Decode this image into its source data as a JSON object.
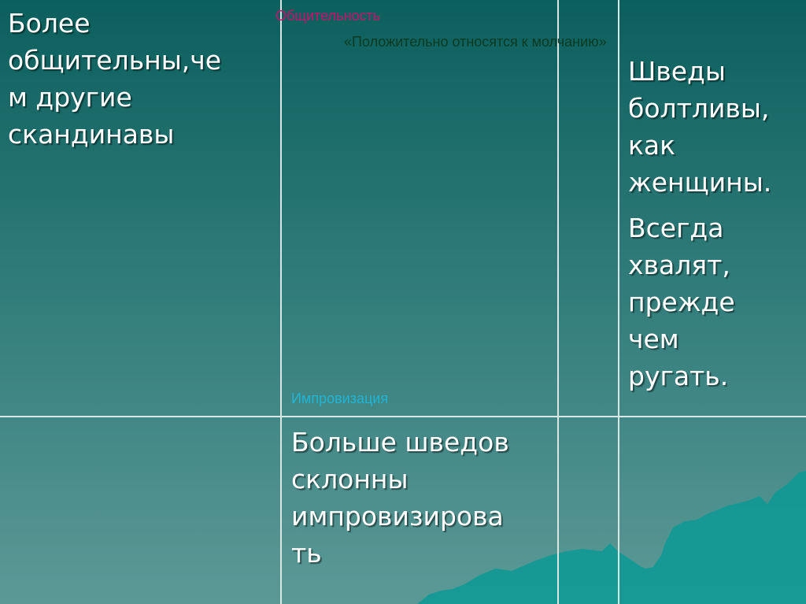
{
  "slide": {
    "cell_r1c1": "Более\nобщительны,че\nм другие\nскандинавы",
    "label_sociability": "Общительность",
    "quote_silence": "«Положительно относятся к молчанию»",
    "label_improvisation": "Импровизация",
    "cell_r1c4_p1": "Шведы\nболтливы,\nкак\nженщины.",
    "cell_r1c4_p2": "Всегда\nхвалят,\nпрежде\nчем\nругать.",
    "cell_r2c2": "Больше шведов\nсклонны\nимпровизирова\nть"
  },
  "colors": {
    "background_top": "#0b5f5d",
    "background_bottom": "#5b9996",
    "sociability_label": "#c8106e",
    "quote_text": "#0b3a22",
    "improvisation_label": "#22b4d4",
    "mountains": "#0f9995"
  }
}
